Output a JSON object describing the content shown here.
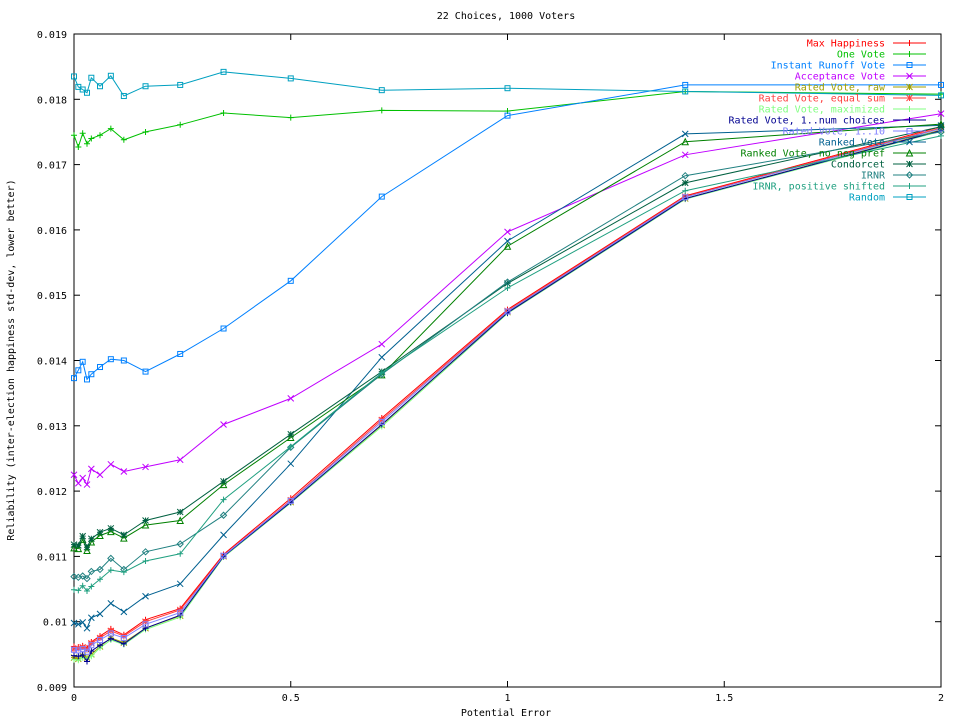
{
  "chart_data": {
    "type": "line",
    "title": "22 Choices, 1000 Voters",
    "xlabel": "Potential Error",
    "ylabel": "Reliability (inter-election happiness std-dev, lower better)",
    "xlim": [
      0,
      2
    ],
    "ylim": [
      0.009,
      0.019
    ],
    "xticks": [
      0,
      0.5,
      1,
      1.5,
      2
    ],
    "xtick_labels": [
      "0",
      "0.5",
      "1",
      "1.5",
      "2"
    ],
    "yticks": [
      0.009,
      0.01,
      0.011,
      0.012,
      0.013,
      0.014,
      0.015,
      0.016,
      0.017,
      0.018,
      0.019
    ],
    "ytick_labels": [
      "0.009",
      "0.01",
      "0.011",
      "0.012",
      "0.013",
      "0.014",
      "0.015",
      "0.016",
      "0.017",
      "0.018",
      "0.019"
    ],
    "grid": false,
    "legend_position": "top-right",
    "x": [
      0,
      0.01,
      0.02,
      0.03,
      0.04,
      0.06,
      0.085,
      0.115,
      0.165,
      0.245,
      0.345,
      0.5,
      0.71,
      1.0,
      1.41,
      2.0
    ],
    "series": [
      {
        "name": "Max Happiness",
        "color": "#ff0000",
        "marker": "plus",
        "values": [
          0.00962,
          0.00961,
          0.00963,
          0.0096,
          0.00969,
          0.00978,
          0.00989,
          0.0098,
          0.01003,
          0.0102,
          0.01103,
          0.01189,
          0.01312,
          0.01478,
          0.01652,
          0.01758
        ]
      },
      {
        "name": "One Vote",
        "color": "#00c000",
        "marker": "plus",
        "values": [
          0.01745,
          0.01727,
          0.01748,
          0.01732,
          0.0174,
          0.01745,
          0.01755,
          0.01738,
          0.0175,
          0.01761,
          0.01779,
          0.01772,
          0.01783,
          0.01782,
          0.01812,
          0.01808
        ]
      },
      {
        "name": "Instant Runoff Vote",
        "color": "#0080ff",
        "marker": "square",
        "values": [
          0.01373,
          0.01385,
          0.01398,
          0.01371,
          0.01379,
          0.0139,
          0.01402,
          0.014,
          0.01383,
          0.0141,
          0.01449,
          0.01522,
          0.01651,
          0.01775,
          0.01822,
          0.01822
        ]
      },
      {
        "name": "Acceptance Vote",
        "color": "#c000ff",
        "marker": "x",
        "values": [
          0.01225,
          0.01212,
          0.0122,
          0.0121,
          0.01234,
          0.01225,
          0.01241,
          0.0123,
          0.01237,
          0.01248,
          0.01302,
          0.01342,
          0.01425,
          0.01597,
          0.01715,
          0.01778
        ]
      },
      {
        "name": "Rated Vote, raw",
        "color": "#a0a000",
        "marker": "star",
        "values": [
          0.00945,
          0.00943,
          0.00948,
          0.00945,
          0.0095,
          0.00962,
          0.00975,
          0.00968,
          0.0099,
          0.01009,
          0.011,
          0.01183,
          0.01301,
          0.01474,
          0.01648,
          0.01753
        ]
      },
      {
        "name": "Rated Vote, equal sum",
        "color": "#ff4040",
        "marker": "star",
        "values": [
          0.00958,
          0.00959,
          0.00961,
          0.00957,
          0.00967,
          0.00975,
          0.00986,
          0.00978,
          0.01,
          0.01018,
          0.01101,
          0.01186,
          0.01309,
          0.01476,
          0.01651,
          0.01756
        ]
      },
      {
        "name": "Rated Vote, maximized",
        "color": "#80ff80",
        "marker": "plus",
        "values": [
          0.00942,
          0.00941,
          0.00945,
          0.00943,
          0.00947,
          0.0096,
          0.00972,
          0.00965,
          0.00988,
          0.01007,
          0.01099,
          0.01182,
          0.01299,
          0.01472,
          0.01647,
          0.01751
        ]
      },
      {
        "name": "Rated Vote, 1..num choices",
        "color": "#000090",
        "marker": "plus",
        "values": [
          0.00948,
          0.00947,
          0.00949,
          0.00939,
          0.00955,
          0.00964,
          0.00974,
          0.00966,
          0.0099,
          0.0101,
          0.011,
          0.01183,
          0.01302,
          0.01473,
          0.01648,
          0.01752
        ]
      },
      {
        "name": "Rated Vote, 1..10",
        "color": "#8080ff",
        "marker": "square",
        "values": [
          0.00957,
          0.00956,
          0.00958,
          0.00954,
          0.00964,
          0.00972,
          0.00982,
          0.00975,
          0.00996,
          0.01014,
          0.01101,
          0.01185,
          0.01306,
          0.01475,
          0.0165,
          0.01755
        ]
      },
      {
        "name": "Ranked Vote",
        "color": "#006090",
        "marker": "x",
        "values": [
          0.00998,
          0.00996,
          0.00999,
          0.0099,
          0.01006,
          0.01012,
          0.01028,
          0.01015,
          0.01039,
          0.01058,
          0.01133,
          0.01242,
          0.01405,
          0.01583,
          0.01747,
          0.0176
        ]
      },
      {
        "name": "Ranked Vote, no neg pref",
        "color": "#008000",
        "marker": "triangle",
        "values": [
          0.01113,
          0.01112,
          0.01126,
          0.01109,
          0.01122,
          0.01132,
          0.01138,
          0.01128,
          0.01148,
          0.01155,
          0.0121,
          0.01282,
          0.01378,
          0.01575,
          0.01735,
          0.01762
        ]
      },
      {
        "name": "Condorcet",
        "color": "#006040",
        "marker": "star",
        "values": [
          0.01118,
          0.01117,
          0.01131,
          0.01114,
          0.01127,
          0.01137,
          0.01143,
          0.01133,
          0.01155,
          0.01168,
          0.01215,
          0.01287,
          0.01383,
          0.01518,
          0.01672,
          0.01758
        ]
      },
      {
        "name": "IRNR",
        "color": "#208080",
        "marker": "diamond",
        "values": [
          0.01069,
          0.01068,
          0.0107,
          0.01066,
          0.01077,
          0.0108,
          0.01097,
          0.0108,
          0.01107,
          0.01119,
          0.01163,
          0.01267,
          0.01379,
          0.0152,
          0.01683,
          0.0175
        ]
      },
      {
        "name": "IRNR, positive shifted",
        "color": "#20a080",
        "marker": "plus",
        "values": [
          0.01049,
          0.01048,
          0.01055,
          0.01047,
          0.01054,
          0.01065,
          0.01079,
          0.01076,
          0.01093,
          0.01104,
          0.01187,
          0.01268,
          0.01381,
          0.01511,
          0.0166,
          0.01744
        ]
      },
      {
        "name": "Random",
        "color": "#00a0c0",
        "marker": "square",
        "values": [
          0.01835,
          0.01819,
          0.01815,
          0.0181,
          0.01833,
          0.0182,
          0.01836,
          0.01805,
          0.0182,
          0.01822,
          0.01842,
          0.01832,
          0.01814,
          0.01817,
          0.01812,
          0.01806
        ]
      }
    ]
  }
}
